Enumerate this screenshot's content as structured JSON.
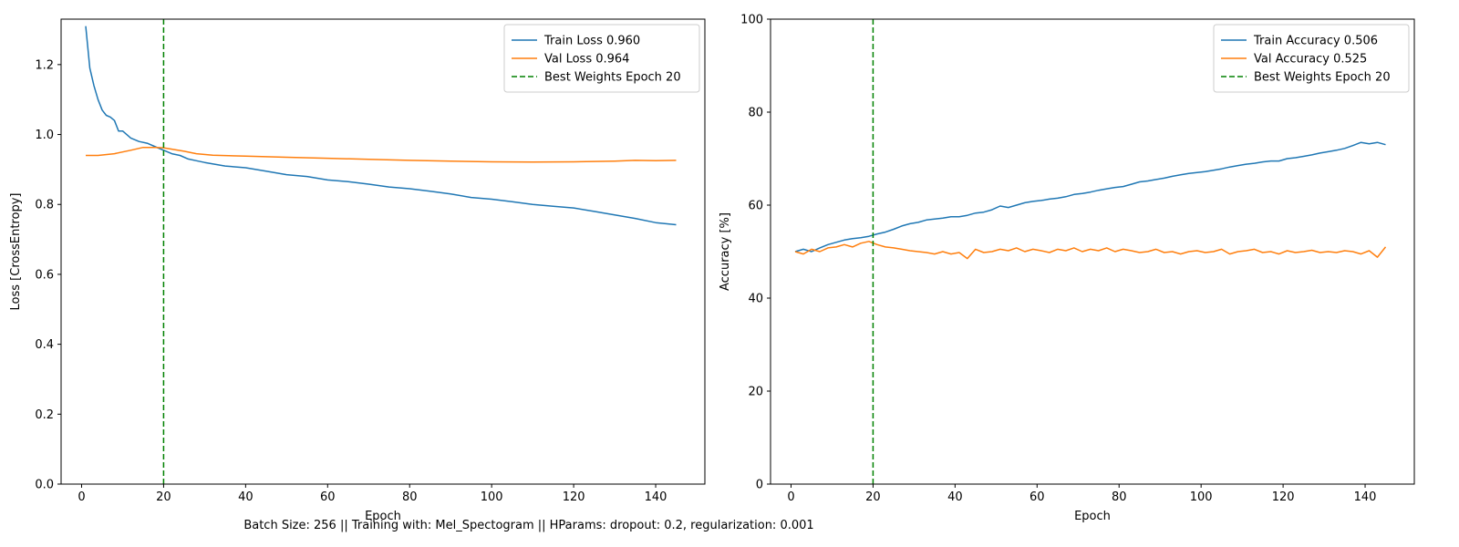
{
  "caption": "Batch Size: 256 || Training with: Mel_Spectogram || HParams: dropout: 0.2, regularization: 0.001",
  "colors": {
    "train": "#1f77b4",
    "val": "#ff7f0e",
    "best": "#008000"
  },
  "chart_data": [
    {
      "type": "line",
      "title": "",
      "xlabel": "Epoch",
      "ylabel": "Loss [CrossEntropy]",
      "xlim": [
        -5,
        152
      ],
      "ylim": [
        0.0,
        1.33
      ],
      "xticks": [
        0,
        20,
        40,
        60,
        80,
        100,
        120,
        140
      ],
      "yticks": [
        0.0,
        0.2,
        0.4,
        0.6,
        0.8,
        1.0,
        1.2
      ],
      "ytick_decimals": 1,
      "legend_position": "top-right",
      "grid": false,
      "best_epoch": 20,
      "series": [
        {
          "name": "Train Loss 0.960",
          "color_key": "train",
          "x": [
            1,
            2,
            3,
            4,
            5,
            6,
            7,
            8,
            9,
            10,
            12,
            14,
            16,
            18,
            20,
            22,
            24,
            26,
            28,
            30,
            35,
            40,
            45,
            50,
            55,
            60,
            65,
            70,
            75,
            80,
            85,
            90,
            95,
            100,
            105,
            110,
            115,
            120,
            125,
            130,
            135,
            140,
            145
          ],
          "y": [
            1.31,
            1.19,
            1.14,
            1.1,
            1.07,
            1.055,
            1.05,
            1.04,
            1.01,
            1.01,
            0.99,
            0.98,
            0.975,
            0.965,
            0.955,
            0.945,
            0.94,
            0.93,
            0.925,
            0.92,
            0.91,
            0.905,
            0.895,
            0.885,
            0.88,
            0.87,
            0.865,
            0.858,
            0.85,
            0.845,
            0.838,
            0.83,
            0.82,
            0.815,
            0.808,
            0.8,
            0.795,
            0.79,
            0.78,
            0.77,
            0.76,
            0.748,
            0.742
          ]
        },
        {
          "name": "Val Loss 0.964",
          "color_key": "val",
          "x": [
            1,
            4,
            8,
            12,
            15,
            18,
            20,
            22,
            25,
            28,
            32,
            40,
            50,
            60,
            70,
            80,
            90,
            100,
            110,
            120,
            130,
            135,
            140,
            145
          ],
          "y": [
            0.94,
            0.94,
            0.945,
            0.955,
            0.963,
            0.963,
            0.962,
            0.958,
            0.952,
            0.945,
            0.941,
            0.938,
            0.935,
            0.932,
            0.929,
            0.926,
            0.924,
            0.922,
            0.921,
            0.922,
            0.924,
            0.926,
            0.925,
            0.926
          ]
        }
      ],
      "vline": {
        "x": 20,
        "name": "Best Weights Epoch 20",
        "color_key": "best",
        "dashed": true
      }
    },
    {
      "type": "line",
      "title": "",
      "xlabel": "Epoch",
      "ylabel": "Accuracy [%]",
      "xlim": [
        -5,
        152
      ],
      "ylim": [
        0,
        100
      ],
      "xticks": [
        0,
        20,
        40,
        60,
        80,
        100,
        120,
        140
      ],
      "yticks": [
        0,
        20,
        40,
        60,
        80,
        100
      ],
      "ytick_decimals": 0,
      "legend_position": "top-right",
      "grid": false,
      "best_epoch": 20,
      "series": [
        {
          "name": "Train Accuracy 0.506",
          "color_key": "train",
          "x": [
            1,
            3,
            5,
            7,
            9,
            11,
            13,
            15,
            17,
            19,
            21,
            23,
            25,
            27,
            29,
            31,
            33,
            35,
            37,
            39,
            41,
            43,
            45,
            47,
            49,
            51,
            53,
            55,
            57,
            59,
            61,
            63,
            65,
            67,
            69,
            71,
            73,
            75,
            77,
            79,
            81,
            83,
            85,
            87,
            89,
            91,
            93,
            95,
            97,
            99,
            101,
            103,
            105,
            107,
            109,
            111,
            113,
            115,
            117,
            119,
            121,
            123,
            125,
            127,
            129,
            131,
            133,
            135,
            137,
            139,
            141,
            143,
            145
          ],
          "y": [
            50,
            50.5,
            50,
            50.8,
            51.5,
            52,
            52.5,
            52.8,
            53,
            53.3,
            53.8,
            54.2,
            54.8,
            55.5,
            56,
            56.3,
            56.8,
            57,
            57.2,
            57.5,
            57.5,
            57.8,
            58.3,
            58.5,
            59,
            59.8,
            59.5,
            60,
            60.5,
            60.8,
            61,
            61.3,
            61.5,
            61.8,
            62.3,
            62.5,
            62.8,
            63.2,
            63.5,
            63.8,
            64,
            64.5,
            65,
            65.2,
            65.5,
            65.8,
            66.2,
            66.5,
            66.8,
            67,
            67.2,
            67.5,
            67.8,
            68.2,
            68.5,
            68.8,
            69,
            69.3,
            69.5,
            69.5,
            70,
            70.2,
            70.5,
            70.8,
            71.2,
            71.5,
            71.8,
            72.2,
            72.8,
            73.5,
            73.2,
            73.5,
            73
          ]
        },
        {
          "name": "Val Accuracy 0.525",
          "color_key": "val",
          "x": [
            1,
            3,
            5,
            7,
            9,
            11,
            13,
            15,
            17,
            19,
            21,
            23,
            25,
            27,
            29,
            31,
            33,
            35,
            37,
            39,
            41,
            43,
            45,
            47,
            49,
            51,
            53,
            55,
            57,
            59,
            61,
            63,
            65,
            67,
            69,
            71,
            73,
            75,
            77,
            79,
            81,
            83,
            85,
            87,
            89,
            91,
            93,
            95,
            97,
            99,
            101,
            103,
            105,
            107,
            109,
            111,
            113,
            115,
            117,
            119,
            121,
            123,
            125,
            127,
            129,
            131,
            133,
            135,
            137,
            139,
            141,
            143,
            145
          ],
          "y": [
            50,
            49.5,
            50.5,
            50,
            50.8,
            51,
            51.5,
            51,
            51.8,
            52.2,
            51.5,
            51,
            50.8,
            50.5,
            50.2,
            50,
            49.8,
            49.5,
            50,
            49.5,
            49.8,
            48.5,
            50.5,
            49.8,
            50,
            50.5,
            50.2,
            50.8,
            50,
            50.5,
            50.2,
            49.8,
            50.5,
            50.2,
            50.8,
            50,
            50.5,
            50.2,
            50.8,
            50,
            50.5,
            50.2,
            49.8,
            50,
            50.5,
            49.8,
            50,
            49.5,
            50,
            50.2,
            49.8,
            50,
            50.5,
            49.5,
            50,
            50.2,
            50.5,
            49.8,
            50,
            49.5,
            50.2,
            49.8,
            50,
            50.3,
            49.8,
            50,
            49.8,
            50.2,
            50,
            49.5,
            50.2,
            48.8,
            51
          ]
        }
      ],
      "vline": {
        "x": 20,
        "name": "Best Weights Epoch 20",
        "color_key": "best",
        "dashed": true
      }
    }
  ]
}
